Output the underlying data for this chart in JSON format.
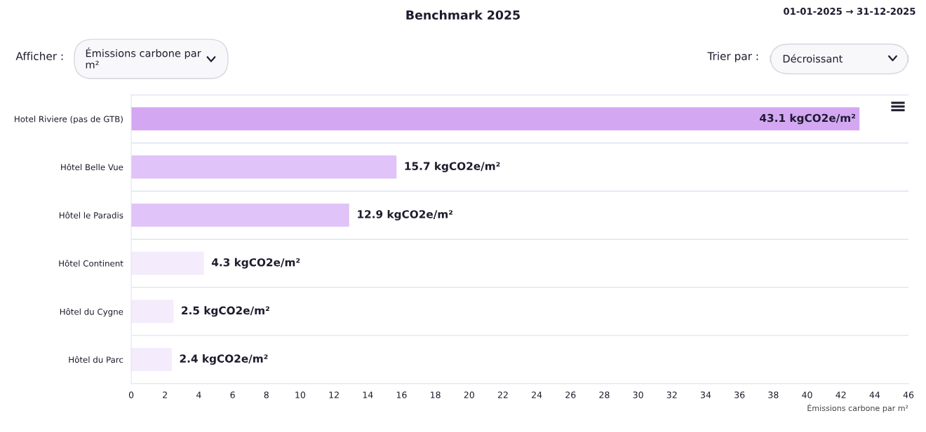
{
  "chart_data": {
    "type": "bar",
    "orientation": "horizontal",
    "title": "Benchmark 2025",
    "categories": [
      "Hotel Riviere (pas de GTB)",
      "Hôtel Belle Vue",
      "Hôtel le Paradis",
      "Hôtel Continent",
      "Hôtel du Cygne",
      "Hôtel du Parc"
    ],
    "values": [
      43.1,
      15.7,
      12.9,
      4.3,
      2.5,
      2.4
    ],
    "colors": [
      "#d4a7f2",
      "#e0c3f8",
      "#e0c3f8",
      "#f4ebfc",
      "#f4ebfc",
      "#f4ebfc"
    ],
    "value_labels": [
      "43.1 kgCO2e/m²",
      "15.7 kgCO2e/m²",
      "12.9 kgCO2e/m²",
      "4.3 kgCO2e/m²",
      "2.5 kgCO2e/m²",
      "2.4 kgCO2e/m²"
    ],
    "xlim": [
      0,
      46
    ],
    "xticks": [
      0,
      2,
      4,
      6,
      8,
      10,
      12,
      14,
      16,
      18,
      20,
      22,
      24,
      26,
      28,
      30,
      32,
      34,
      36,
      38,
      40,
      42,
      44,
      46
    ],
    "xlabel": "Émissions carbone par m²",
    "grid": "y",
    "legend": false,
    "annotations": [
      "01-01-2025 → 31-12-2025",
      "Afficher :",
      "Émissions carbone par m²",
      "Trier par :",
      "Décroissant"
    ]
  }
}
